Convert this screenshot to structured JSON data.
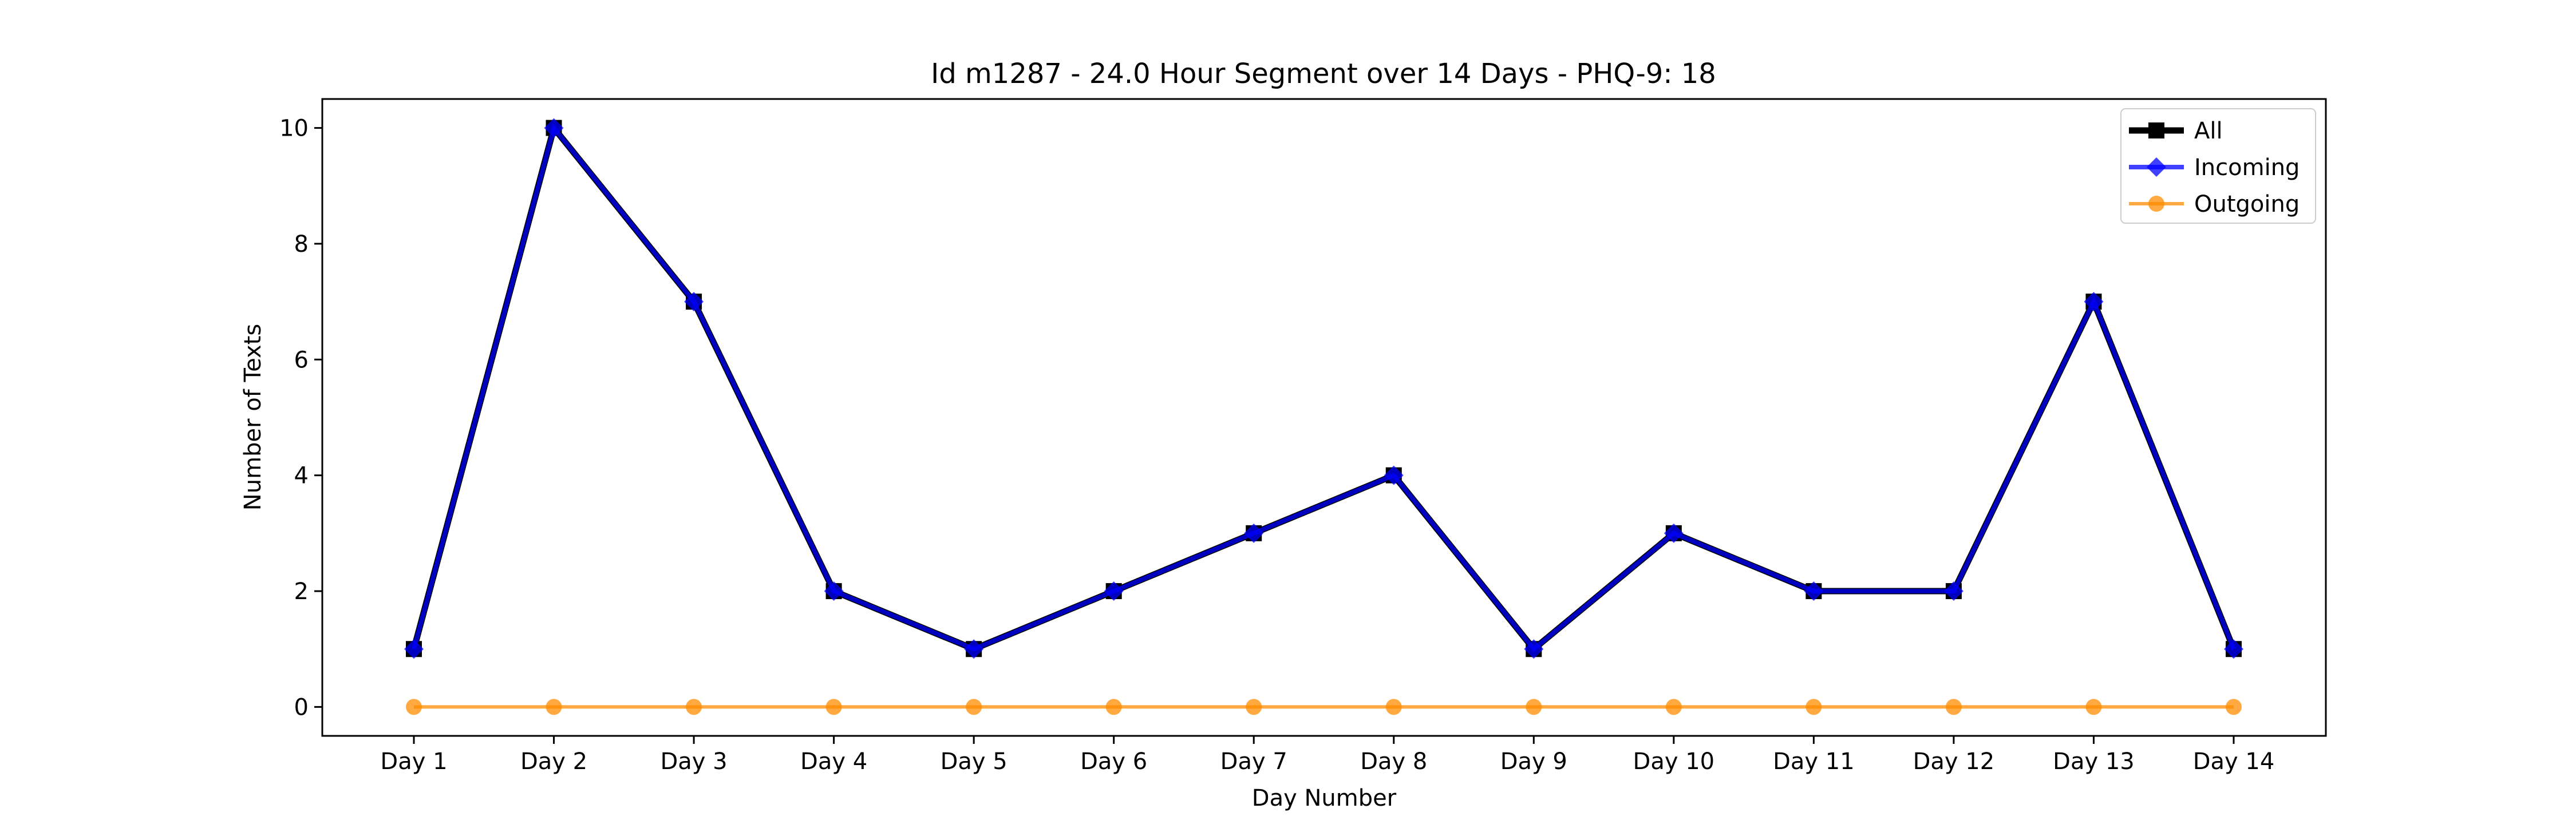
{
  "chart_data": {
    "type": "line",
    "title": "Id m1287 - 24.0 Hour Segment over 14 Days - PHQ-9: 18",
    "xlabel": "Day Number",
    "ylabel": "Number of Texts",
    "categories": [
      "Day 1",
      "Day 2",
      "Day 3",
      "Day 4",
      "Day 5",
      "Day 6",
      "Day 7",
      "Day 8",
      "Day 9",
      "Day 10",
      "Day 11",
      "Day 12",
      "Day 13",
      "Day 14"
    ],
    "ylim": [
      -0.5,
      10.5
    ],
    "yticks": [
      0,
      2,
      4,
      6,
      8,
      10
    ],
    "grid": false,
    "legend_position": "top-right",
    "series": [
      {
        "name": "All",
        "values": [
          1,
          10,
          7,
          2,
          1,
          2,
          3,
          4,
          1,
          3,
          2,
          2,
          7,
          1
        ],
        "color": "#000000",
        "marker": "square"
      },
      {
        "name": "Incoming",
        "values": [
          1,
          10,
          7,
          2,
          1,
          2,
          3,
          4,
          1,
          3,
          2,
          2,
          7,
          1
        ],
        "color": "#0000ff",
        "marker": "diamond"
      },
      {
        "name": "Outgoing",
        "values": [
          0,
          0,
          0,
          0,
          0,
          0,
          0,
          0,
          0,
          0,
          0,
          0,
          0,
          0
        ],
        "color": "#ff8c00",
        "marker": "circle"
      }
    ]
  }
}
